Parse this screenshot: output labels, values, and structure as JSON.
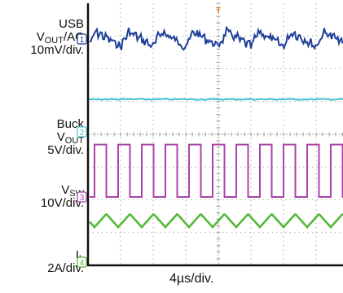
{
  "chart_data": {
    "type": "line",
    "title": "",
    "grid": true,
    "xlabel": "4µs/div.",
    "time_per_division_us": 4,
    "divisions_x": 10,
    "divisions_y": 8,
    "trigger_marker": "T",
    "series": [
      {
        "channel": "1",
        "label_lines": [
          "USB",
          "VOUT/AC",
          "10mV/div."
        ],
        "coupling": "AC",
        "scale": "10mV/div.",
        "color": "#1f3f9a",
        "waveform": "ripple noise",
        "ripple_period_us": 4
      },
      {
        "channel": "2",
        "label_lines": [
          "Buck",
          "VOUT",
          "5V/div."
        ],
        "scale": "5V/div.",
        "color": "#4ec3d1",
        "waveform": "flat DC"
      },
      {
        "channel": "3",
        "label_lines": [
          "VSW",
          "10V/div."
        ],
        "scale": "10V/div.",
        "color": "#a844a8",
        "waveform": "square",
        "period_us": 2.9,
        "duty_cycle": 0.5,
        "amplitude_div": 1.6
      },
      {
        "channel": "4",
        "label_lines": [
          "IL",
          "2A/div."
        ],
        "scale": "2A/div.",
        "color": "#53b93a",
        "waveform": "triangle",
        "period_us": 2.9,
        "amplitude_div": 0.2
      }
    ]
  }
}
